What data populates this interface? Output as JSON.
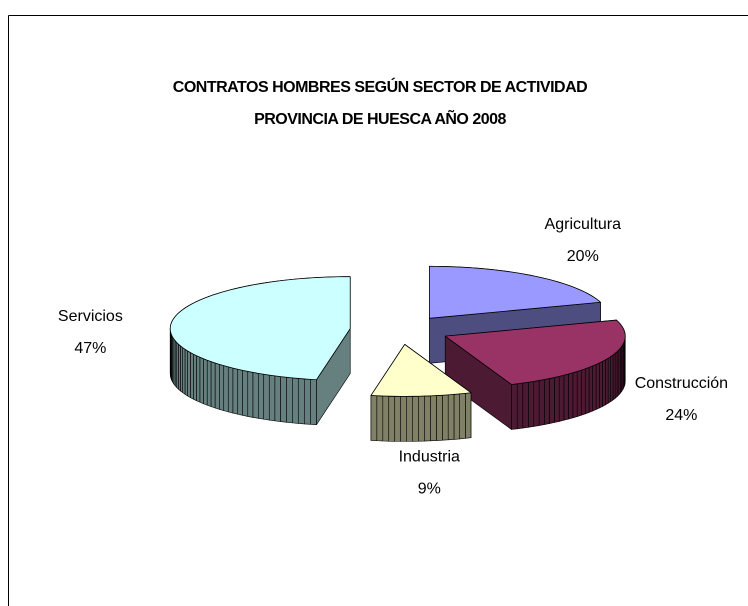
{
  "chart_data": {
    "type": "pie3d",
    "title": [
      "CONTRATOS HOMBRES SEGÚN SECTOR DE ACTIVIDAD",
      "PROVINCIA DE HUESCA AÑO 2008"
    ],
    "categories": [
      "Agricultura",
      "Construcción",
      "Industria",
      "Servicios"
    ],
    "values": [
      20,
      24,
      9,
      47
    ],
    "value_labels": [
      "20%",
      "24%",
      "9%",
      "47%"
    ],
    "colors": [
      "#9999ff",
      "#993366",
      "#ffffcc",
      "#ccffff"
    ]
  }
}
